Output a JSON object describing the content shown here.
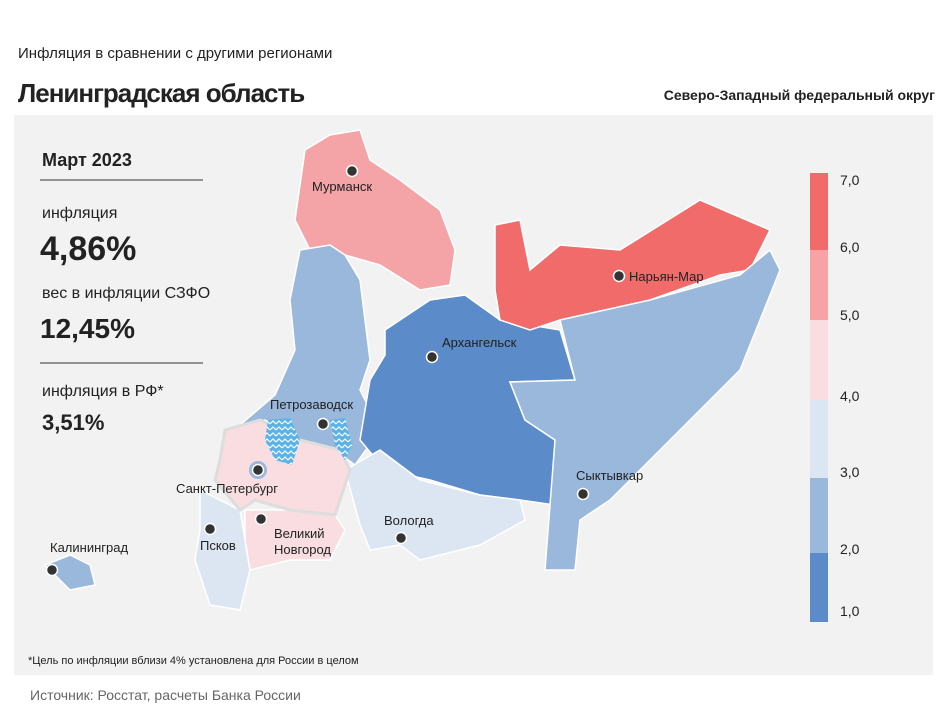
{
  "header": {
    "subtitle": "Инфляция  в сравнении  с другими  регионами",
    "title": "Ленинградская область",
    "district": "Северо-Западный федеральный округ"
  },
  "panel": {
    "period": "Март 2023",
    "inflation_label": "инфляция",
    "inflation_value": "4,86%",
    "weight_label": "вес в инфляции  СЗФО",
    "weight_value": "12,45%",
    "rf_label": "инфляция  в РФ*",
    "rf_value": "3,51%"
  },
  "legend": {
    "ticks": [
      "7,0",
      "6,0",
      "5,0",
      "4,0",
      "3,0",
      "2,0",
      "1,0"
    ]
  },
  "cities": [
    {
      "name": "Мурманск"
    },
    {
      "name": "Нарьян-Мар"
    },
    {
      "name": "Архангельск"
    },
    {
      "name": "Петрозаводск"
    },
    {
      "name": "Сыктывкар"
    },
    {
      "name": "Санкт-Петербург"
    },
    {
      "name": [
        "Великий",
        "Новгород"
      ]
    },
    {
      "name": "Вологда"
    },
    {
      "name": "Псков"
    },
    {
      "name": "Калининград"
    }
  ],
  "footnote": "*Цель по инфляции вблизи 4% установлена для России в целом",
  "source": "Источник: Росстат, расчеты Банка России"
}
